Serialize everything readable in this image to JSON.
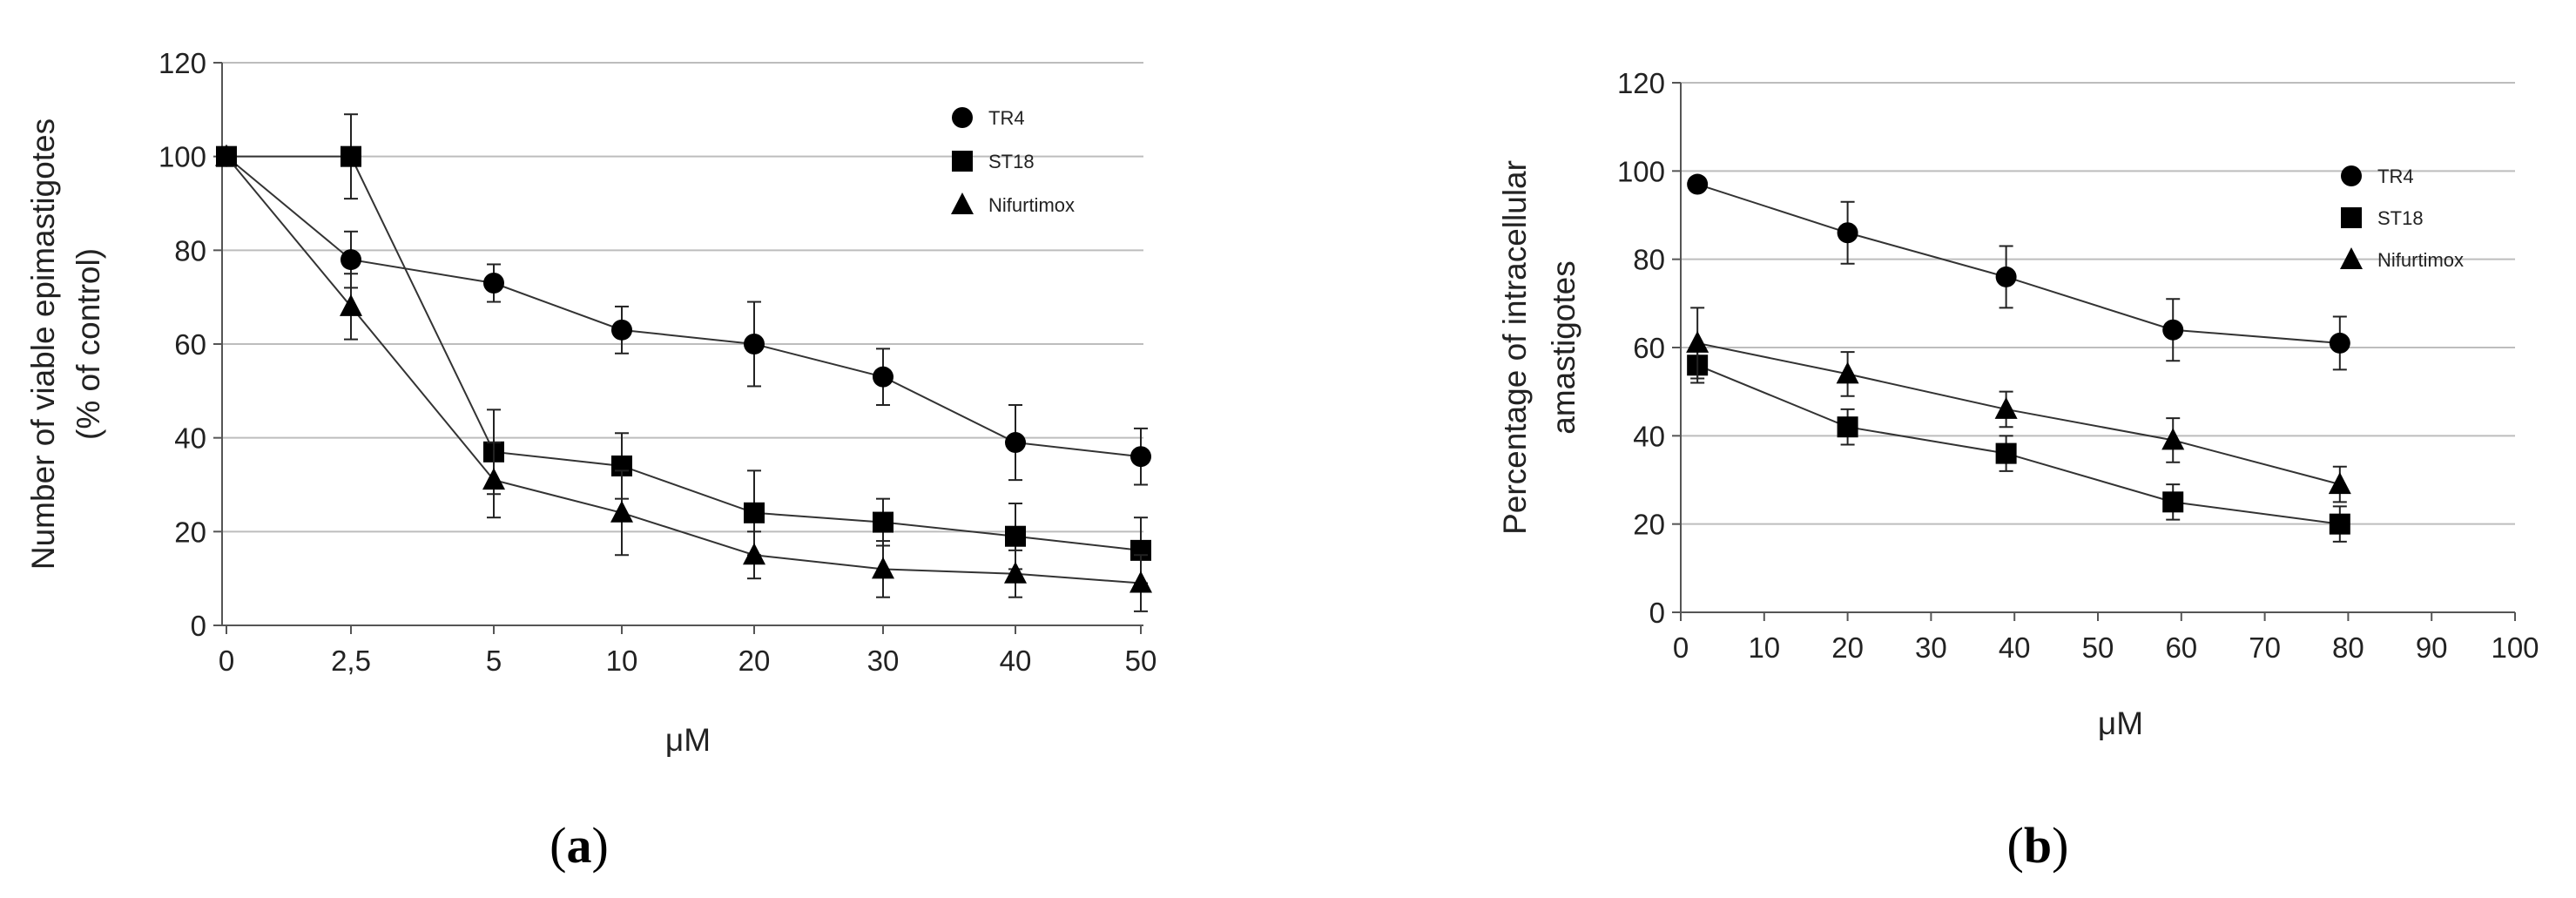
{
  "figure": {
    "panel_labels": [
      "a",
      "b"
    ]
  },
  "chart_data": [
    {
      "type": "line",
      "xlabel": "μM",
      "ylabel_lines": [
        "Number of viable epimastigotes",
        "(% of control)"
      ],
      "ylim": [
        0,
        120
      ],
      "yticks": [
        "0",
        "20",
        "40",
        "60",
        "80",
        "100",
        "120"
      ],
      "categories": [
        "0",
        "2,5",
        "5",
        "10",
        "20",
        "30",
        "40",
        "50"
      ],
      "grid": "horizontal",
      "legend_position": "top-right",
      "series": [
        {
          "name": "TR4",
          "marker": "circle",
          "values": [
            100,
            78,
            73,
            63,
            60,
            53,
            39,
            36
          ],
          "errors": [
            0,
            6,
            4,
            5,
            9,
            6,
            8,
            6
          ]
        },
        {
          "name": "ST18",
          "marker": "square",
          "values": [
            100,
            100,
            37,
            34,
            24,
            22,
            19,
            16
          ],
          "errors": [
            0,
            9,
            9,
            7,
            9,
            5,
            7,
            7
          ]
        },
        {
          "name": "Nifurtimox",
          "marker": "triangle",
          "values": [
            100,
            68,
            31,
            24,
            15,
            12,
            11,
            9
          ],
          "errors": [
            0,
            7,
            8,
            9,
            5,
            6,
            5,
            6
          ]
        }
      ]
    },
    {
      "type": "line",
      "xlabel": "μM",
      "ylabel_lines": [
        "Percentage of intracellular",
        "amastigotes"
      ],
      "ylim": [
        0,
        120
      ],
      "yticks": [
        "0",
        "20",
        "40",
        "60",
        "80",
        "100",
        "120"
      ],
      "xlim": [
        0,
        100
      ],
      "xticks": [
        "0",
        "10",
        "20",
        "30",
        "40",
        "50",
        "60",
        "70",
        "80",
        "90",
        "100"
      ],
      "grid": "horizontal",
      "legend_position": "top-right",
      "series": [
        {
          "name": "TR4",
          "marker": "circle",
          "x": [
            2,
            20,
            39,
            59,
            79
          ],
          "values": [
            97,
            86,
            76,
            64,
            61
          ],
          "errors": [
            0,
            7,
            7,
            7,
            6
          ]
        },
        {
          "name": "ST18",
          "marker": "square",
          "x": [
            2,
            20,
            39,
            59,
            79
          ],
          "values": [
            56,
            42,
            36,
            25,
            20
          ],
          "errors": [
            4,
            4,
            4,
            4,
            4
          ]
        },
        {
          "name": "Nifurtimox",
          "marker": "triangle",
          "x": [
            2,
            20,
            39,
            59,
            79
          ],
          "values": [
            61,
            54,
            46,
            39,
            29
          ],
          "errors": [
            8,
            5,
            4,
            5,
            4
          ]
        }
      ]
    }
  ]
}
